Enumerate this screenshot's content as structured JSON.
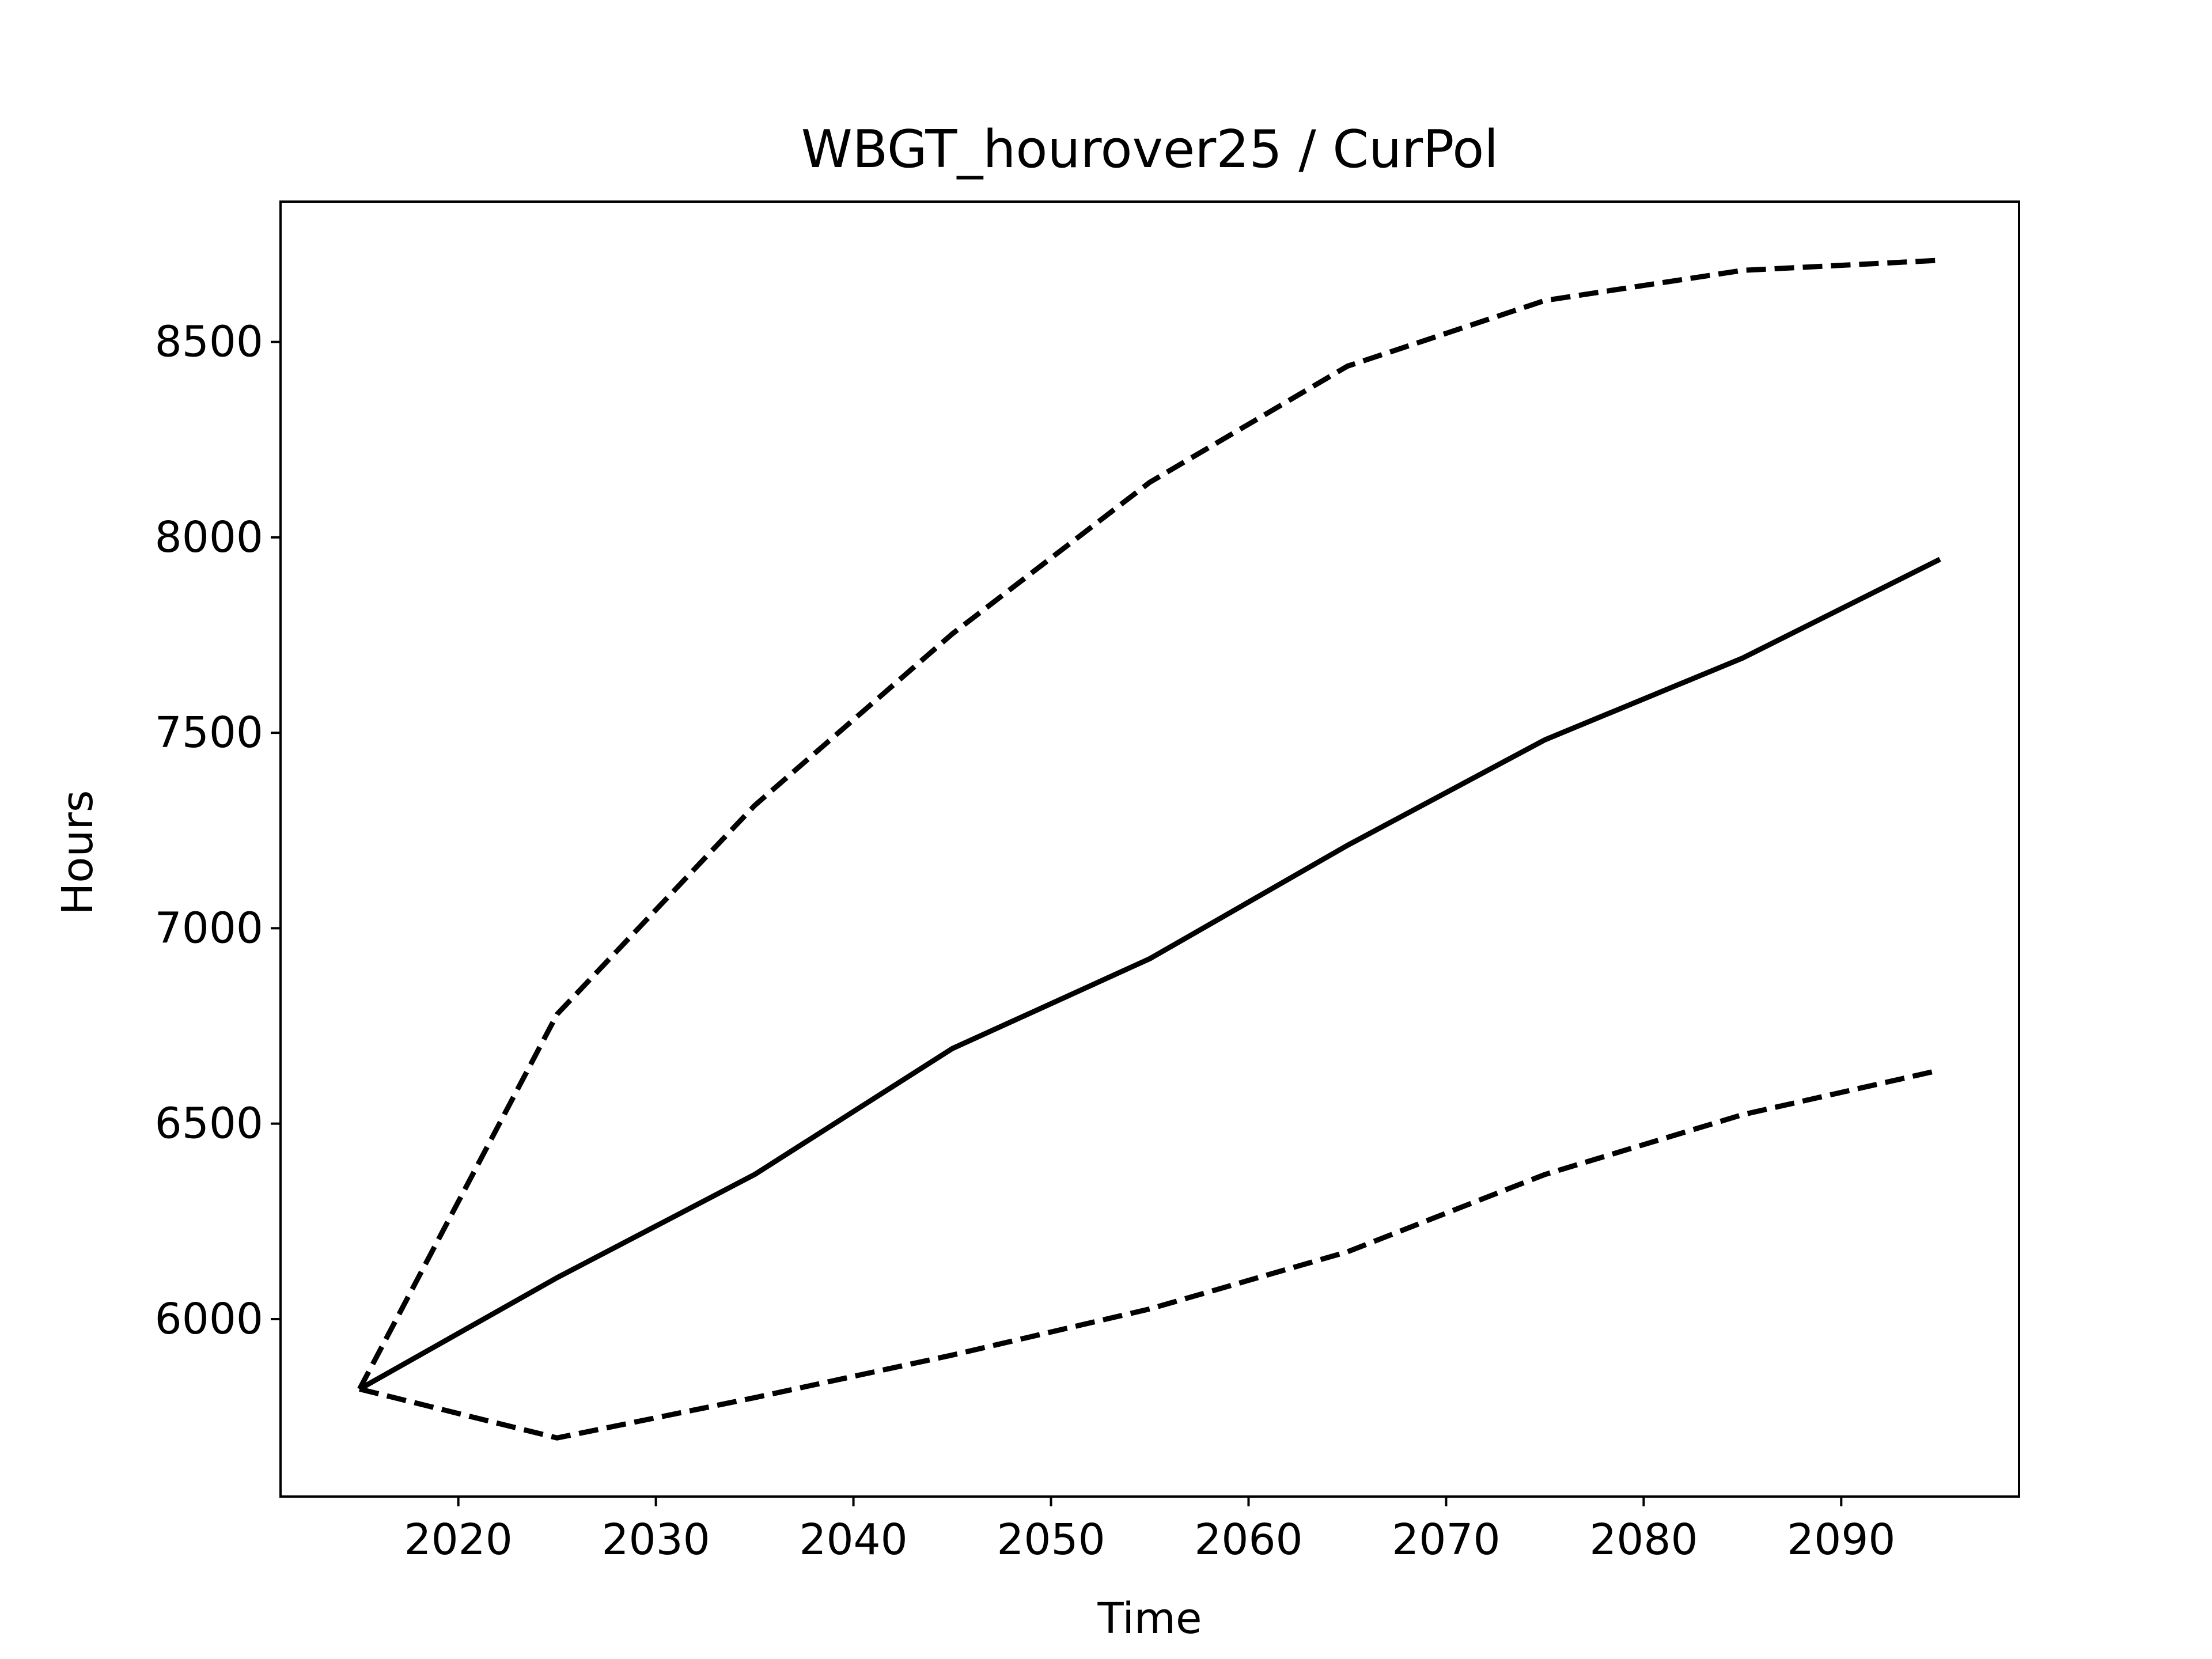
{
  "chart_data": {
    "type": "line",
    "title": "WBGT_hourover25 / CurPol",
    "x_label": "Time",
    "y_label": "Hours",
    "x": [
      2015,
      2025,
      2035,
      2045,
      2055,
      2065,
      2075,
      2085,
      2095
    ],
    "series": [
      {
        "color": "#000000",
        "style": "dashed",
        "values": [
          5821,
          6780,
          7314,
          7753,
          8141,
          8438,
          8606,
          8683,
          8709
        ]
      },
      {
        "color": "#000000",
        "style": "solid",
        "values": [
          5821,
          6106,
          6370,
          6692,
          6922,
          7212,
          7482,
          7691,
          7944
        ]
      },
      {
        "color": "#000000",
        "style": "dashed",
        "values": [
          5821,
          5696,
          5799,
          5908,
          6026,
          6172,
          6370,
          6523,
          6637
        ]
      }
    ],
    "xlim": [
      2011,
      2099
    ],
    "xticks": [
      2020,
      2030,
      2040,
      2050,
      2060,
      2070,
      2080,
      2090
    ],
    "ylim": [
      5546,
      8859
    ],
    "yticks": [
      6000,
      6500,
      7000,
      7500,
      8000,
      8500
    ],
    "grid": false
  }
}
